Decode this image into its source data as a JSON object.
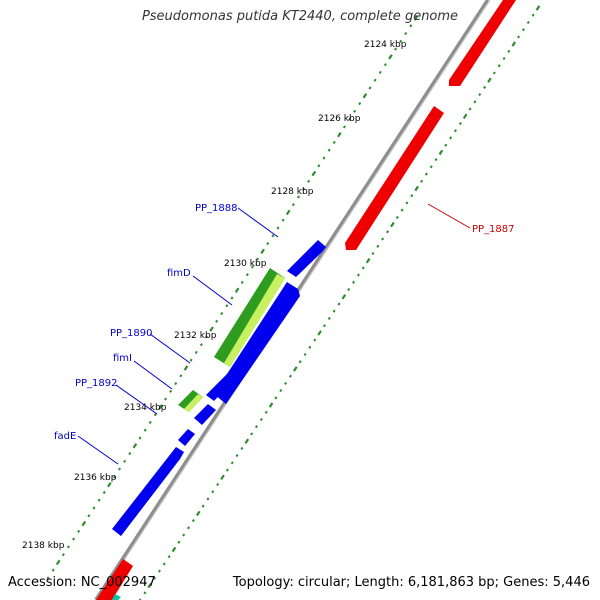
{
  "title": "Pseudomonas putida KT2440, complete genome",
  "accession_label": "Accession: NC_002947",
  "topology_label": "Topology: circular; Length: 6,181,863 bp; Genes: 5,446",
  "colors": {
    "backbone": "#999999",
    "forward_gene": "#0000ee",
    "reverse_gene": "#ee0000",
    "rna_gene": "#2e9c1e",
    "rna_gene_highlight": "#c8f060",
    "tick_dots": "#2e8b2e",
    "label_forward": "#0000cc",
    "label_reverse": "#cc0000"
  },
  "ticks": [
    {
      "label": "2124 kbp"
    },
    {
      "label": "2126 kbp"
    },
    {
      "label": "2128 kbp"
    },
    {
      "label": "2130 kbp"
    },
    {
      "label": "2132 kbp"
    },
    {
      "label": "2134 kbp"
    },
    {
      "label": "2136 kbp"
    },
    {
      "label": "2138 kbp"
    }
  ],
  "genes": [
    {
      "name": "PP_1887",
      "strand": "reverse",
      "type": "cds",
      "labeled": true
    },
    {
      "name": "PP_1888",
      "strand": "forward",
      "type": "cds",
      "labeled": true
    },
    {
      "name": "fimD",
      "strand": "forward",
      "type": "rna",
      "labeled": true
    },
    {
      "name": "PP_1890",
      "strand": "forward",
      "type": "cds",
      "labeled": true
    },
    {
      "name": "fimI",
      "strand": "forward",
      "type": "rna",
      "labeled": true
    },
    {
      "name": "PP_1892",
      "strand": "forward",
      "type": "cds",
      "labeled": true
    },
    {
      "name": "fadE",
      "strand": "forward",
      "type": "cds",
      "labeled": true
    }
  ]
}
